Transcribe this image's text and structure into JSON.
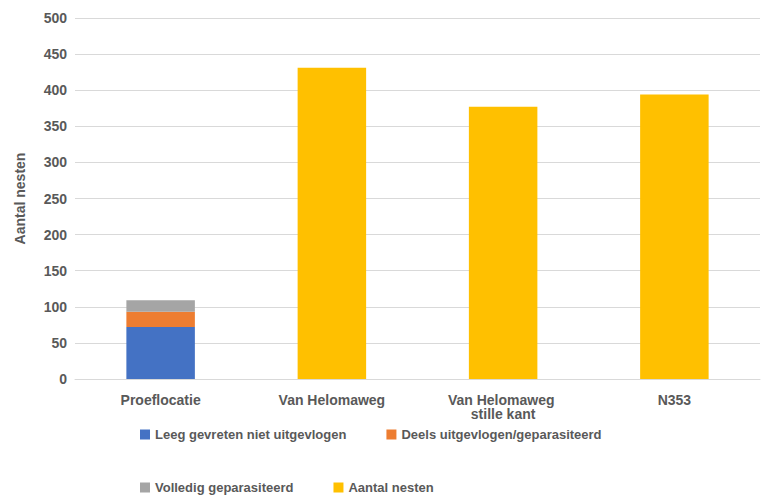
{
  "chart_data": {
    "type": "bar",
    "y_label": "Aantal nesten",
    "categories": [
      "Proeflocatie",
      "Van Helomaweg",
      "Van Helomaweg stille kant",
      "N353"
    ],
    "series": [
      {
        "name": "Leeg gevreten niet uitgevlogen",
        "color": "#4472c4",
        "values": [
          72,
          null,
          null,
          null
        ]
      },
      {
        "name": "Deels uitgevlogen/geparasiteerd",
        "color": "#ed7d31",
        "values": [
          21,
          null,
          null,
          null
        ]
      },
      {
        "name": "Volledig geparasiteerd",
        "color": "#a5a5a5",
        "values": [
          16,
          null,
          null,
          null
        ]
      },
      {
        "name": "Aantal nesten",
        "color": "#ffc000",
        "values": [
          null,
          431,
          377,
          394
        ]
      }
    ],
    "stacked": true,
    "ylim": [
      0,
      500
    ],
    "yticks": [
      0,
      50,
      100,
      150,
      200,
      250,
      300,
      350,
      400,
      450,
      500
    ],
    "grid": true,
    "legend": "bottom"
  }
}
